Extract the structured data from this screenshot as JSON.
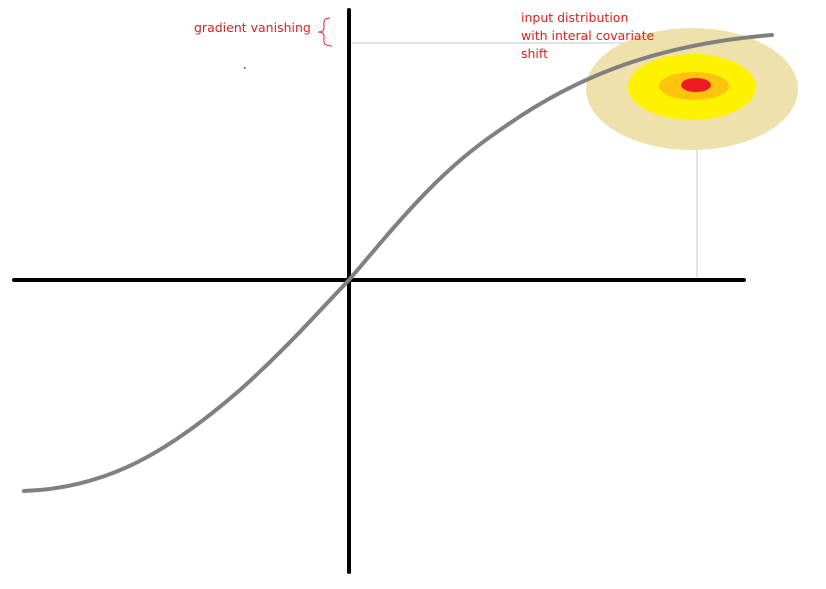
{
  "diagram": {
    "annotations": {
      "gradient_vanishing": "gradient vanishing",
      "input_distribution": {
        "line1": "input distribution",
        "line2": "with interal covariate",
        "line3": "shift"
      }
    },
    "colors": {
      "axes": "#000000",
      "curve": "#808080",
      "guide_lines": "#c8c8c8",
      "label_text": "#e02020",
      "brace": "#e02020",
      "distribution_outer": "#efe1ab",
      "distribution_middle": "#fff200",
      "distribution_inner": "#ffc20e",
      "distribution_center": "#ed1c24"
    },
    "curve_shape": "sigmoid (tanh-like)"
  }
}
